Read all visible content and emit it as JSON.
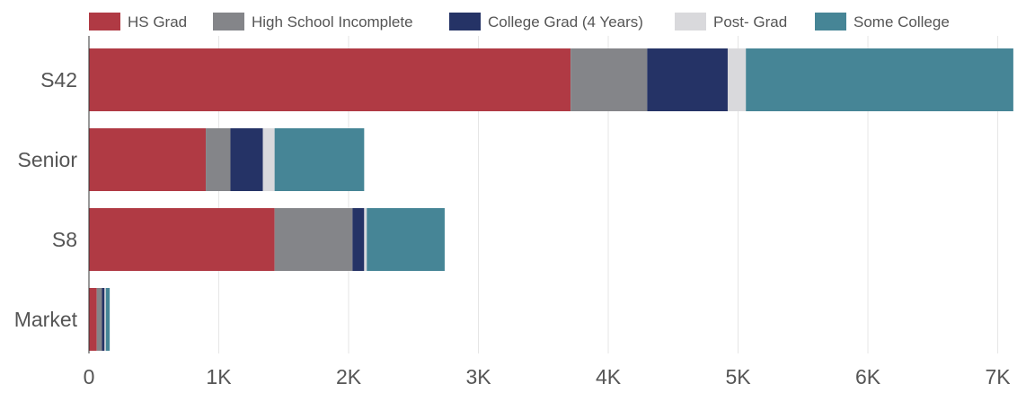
{
  "chart_data": {
    "type": "bar",
    "orientation": "horizontal",
    "stacked": true,
    "categories": [
      "S42",
      "Senior",
      "S8",
      "Market"
    ],
    "series": [
      {
        "name": "HS Grad",
        "color": "#b03a44",
        "values": [
          3710,
          900,
          1430,
          60
        ]
      },
      {
        "name": "High School Incomplete",
        "color": "#848589",
        "values": [
          590,
          190,
          600,
          40
        ]
      },
      {
        "name": "College Grad (4 Years)",
        "color": "#253366",
        "values": [
          620,
          250,
          90,
          20
        ]
      },
      {
        "name": "Post- Grad",
        "color": "#d9d9dc",
        "values": [
          140,
          90,
          20,
          10
        ]
      },
      {
        "name": "Some College",
        "color": "#468596",
        "values": [
          2060,
          690,
          600,
          30
        ]
      }
    ],
    "xlim": [
      0,
      7100
    ],
    "xticks": [
      0,
      1000,
      2000,
      3000,
      4000,
      5000,
      6000,
      7000
    ],
    "xtick_labels": [
      "0",
      "1K",
      "2K",
      "3K",
      "4K",
      "5K",
      "6K",
      "7K"
    ],
    "grid": true,
    "legend_position": "top"
  }
}
